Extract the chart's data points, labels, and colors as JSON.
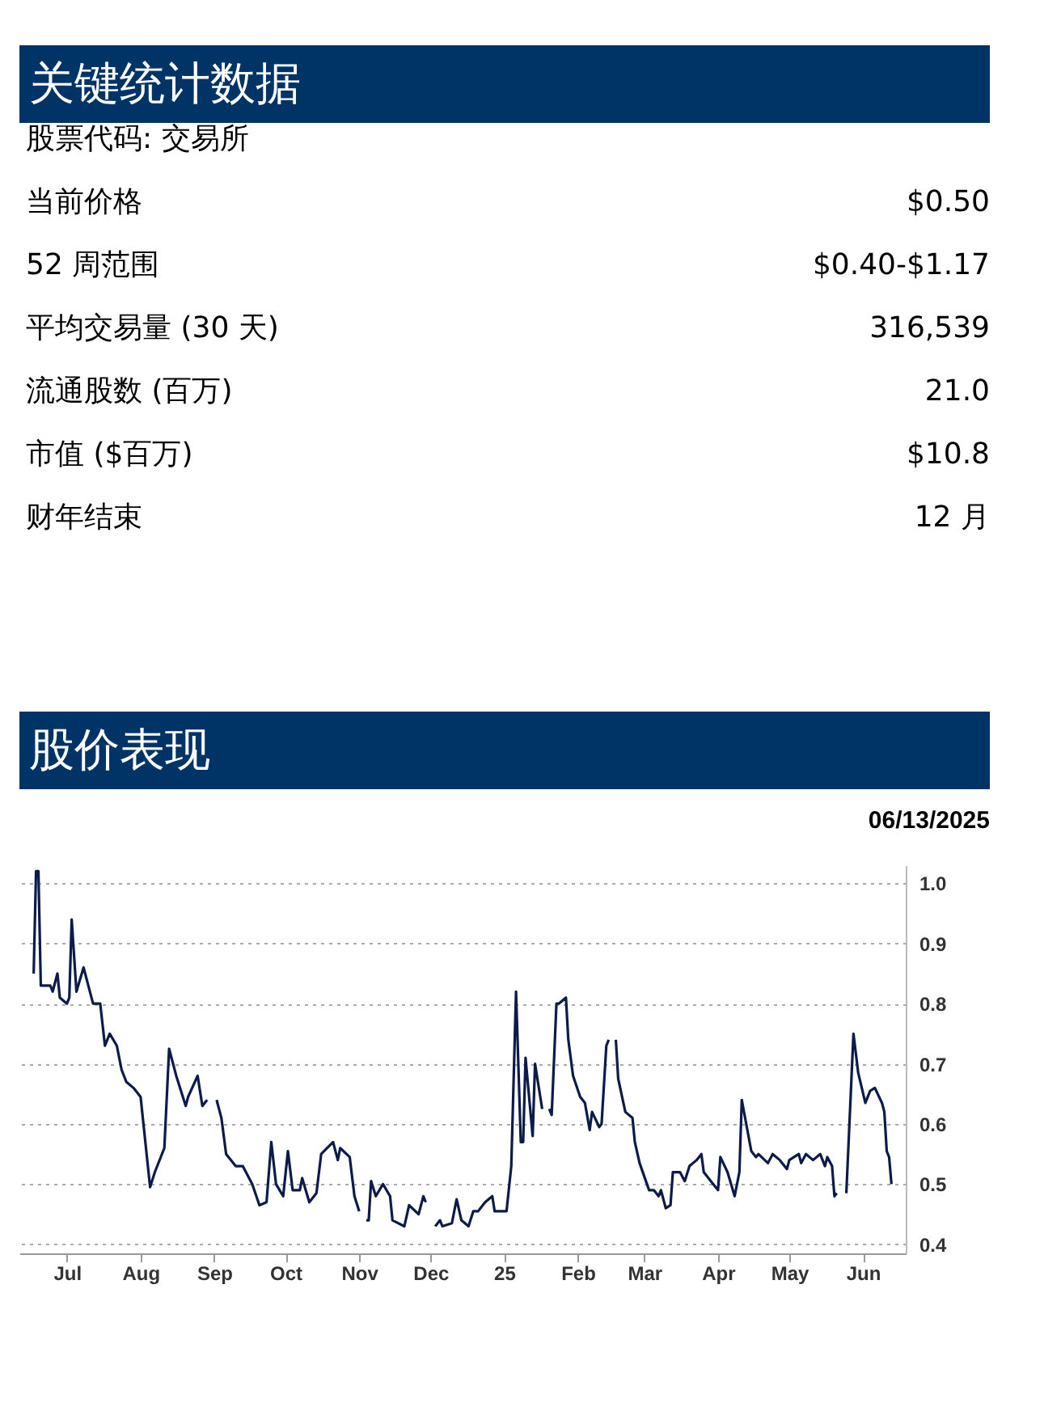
{
  "chart_data": [
    {
      "type": "other",
      "title": "关键统计数据",
      "color": "#003366",
      "categories": [
        "股票代码: 交易所",
        "当前价格",
        "52 周范围",
        "平均交易量 (30 天)",
        "流通股数 (百万)",
        "市值 ($百万)",
        "财年结束"
      ],
      "value_labels": [
        null,
        "$0.50",
        "$0.40-$1.17",
        "316,539",
        "21.0",
        "$10.8",
        "12 月"
      ]
    },
    {
      "type": "line",
      "title": "股价表现",
      "annotations": [
        "06/13/2025"
      ],
      "color": "#0d1b4a",
      "grid": "y",
      "line_style": "solid",
      "x": [
        "2024-06-17",
        "2024-06-18",
        "2024-06-19",
        "2024-06-20",
        "2024-06-24",
        "2024-06-25",
        "2024-06-27",
        "2024-06-28",
        "2024-07-01",
        "2024-07-02",
        "2024-07-03",
        "2024-07-05",
        "2024-07-08",
        "2024-07-10",
        "2024-07-12",
        "2024-07-15",
        "2024-07-17",
        "2024-07-19",
        "2024-07-22",
        "2024-07-24",
        "2024-07-26",
        "2024-07-29",
        "2024-08-01",
        "2024-08-05",
        "2024-08-07",
        "2024-08-11",
        "2024-08-13",
        "2024-08-16",
        "2024-08-20",
        "2024-08-21",
        "2024-08-25",
        "2024-08-27",
        "2024-08-29",
        "2024-08-31",
        "2024-09-02",
        "2024-09-04",
        "2024-09-06",
        "2024-09-10",
        "2024-09-13",
        "2024-09-17",
        "2024-09-20",
        "2024-09-23",
        "2024-09-25",
        "2024-09-27",
        "2024-09-30",
        "2024-10-02",
        "2024-10-04",
        "2024-10-07",
        "2024-10-08",
        "2024-10-11",
        "2024-10-14",
        "2024-10-16",
        "2024-10-21",
        "2024-10-23",
        "2024-10-24",
        "2024-10-28",
        "2024-10-30",
        "2024-11-01",
        "2024-11-03",
        "2024-11-04",
        "2024-11-05",
        "2024-11-06",
        "2024-11-08",
        "2024-11-11",
        "2024-11-14",
        "2024-11-15",
        "2024-11-20",
        "2024-11-22",
        "2024-11-26",
        "2024-11-28",
        "2024-11-29",
        "2024-12-01",
        "2024-12-03",
        "2024-12-05",
        "2024-12-06",
        "2024-12-10",
        "2024-12-12",
        "2024-12-14",
        "2024-12-17",
        "2024-12-19",
        "2024-12-21",
        "2024-12-24",
        "2024-12-27",
        "2024-12-28",
        "2025-01-02",
        "2025-01-04",
        "2025-01-06",
        "2025-01-08",
        "2025-01-09",
        "2025-01-10",
        "2025-01-13",
        "2025-01-14",
        "2025-01-17",
        "2025-01-19",
        "2025-01-20",
        "2025-01-21",
        "2025-01-23",
        "2025-01-24",
        "2025-01-27",
        "2025-01-28",
        "2025-01-30",
        "2025-02-02",
        "2025-02-04",
        "2025-02-06",
        "2025-02-07",
        "2025-02-10",
        "2025-02-11",
        "2025-02-13",
        "2025-02-14",
        "2025-02-16",
        "2025-02-17",
        "2025-02-18",
        "2025-02-21",
        "2025-02-24",
        "2025-02-25",
        "2025-02-27",
        "2025-03-03",
        "2025-03-05",
        "2025-03-07",
        "2025-03-08",
        "2025-03-10",
        "2025-03-12",
        "2025-03-13",
        "2025-03-16",
        "2025-03-18",
        "2025-03-20",
        "2025-03-23",
        "2025-03-25",
        "2025-03-26",
        "2025-03-30",
        "2025-04-01",
        "2025-04-02",
        "2025-04-05",
        "2025-04-08",
        "2025-04-10",
        "2025-04-11",
        "2025-04-15",
        "2025-04-17",
        "2025-04-18",
        "2025-04-22",
        "2025-04-24",
        "2025-04-27",
        "2025-04-30",
        "2025-05-01",
        "2025-05-05",
        "2025-05-06",
        "2025-05-08",
        "2025-05-11",
        "2025-05-14",
        "2025-05-16",
        "2025-05-17",
        "2025-05-19",
        "2025-05-20",
        "2025-05-21",
        "2025-05-23",
        "2025-05-25",
        "2025-05-28",
        "2025-05-30",
        "2025-06-02",
        "2025-06-04",
        "2025-06-06",
        "2025-06-09",
        "2025-06-10",
        "2025-06-11",
        "2025-06-12",
        "2025-06-13"
      ],
      "values": [
        0.85,
        1.02,
        1.02,
        0.83,
        0.83,
        0.82,
        0.85,
        0.81,
        0.8,
        0.81,
        0.94,
        0.82,
        0.86,
        0.83,
        0.8,
        0.8,
        0.73,
        0.75,
        0.73,
        0.69,
        0.67,
        0.66,
        0.645,
        0.495,
        0.52,
        0.56,
        0.725,
        0.68,
        0.63,
        0.645,
        0.68,
        0.63,
        0.64,
        null,
        0.64,
        0.61,
        0.55,
        0.53,
        0.53,
        0.5,
        0.465,
        0.47,
        0.57,
        0.5,
        0.48,
        0.555,
        0.49,
        0.49,
        0.51,
        0.47,
        0.485,
        0.55,
        0.57,
        0.54,
        0.56,
        0.545,
        0.48,
        0.455,
        null,
        0.44,
        0.44,
        0.505,
        0.48,
        0.5,
        0.48,
        0.44,
        0.43,
        0.465,
        0.45,
        0.48,
        0.47,
        null,
        0.43,
        0.44,
        0.43,
        0.435,
        0.475,
        0.44,
        0.43,
        0.455,
        0.455,
        0.47,
        0.48,
        0.455,
        0.455,
        0.53,
        0.82,
        0.57,
        0.57,
        0.71,
        0.58,
        0.7,
        0.625,
        null,
        0.625,
        0.615,
        0.8,
        0.8,
        0.81,
        0.74,
        0.68,
        0.645,
        0.635,
        0.59,
        0.62,
        0.595,
        0.6,
        0.73,
        0.74,
        null,
        0.74,
        0.675,
        0.62,
        0.61,
        0.57,
        0.535,
        0.49,
        0.49,
        0.48,
        0.49,
        0.46,
        0.465,
        0.52,
        0.52,
        0.505,
        0.53,
        0.54,
        0.55,
        0.52,
        0.5,
        0.49,
        0.545,
        0.52,
        0.48,
        0.52,
        0.64,
        0.555,
        0.545,
        0.55,
        0.535,
        0.55,
        0.54,
        0.525,
        0.54,
        0.55,
        0.535,
        0.55,
        0.54,
        0.55,
        0.53,
        0.545,
        0.53,
        0.48,
        0.485,
        null,
        0.485,
        0.75,
        0.685,
        0.635,
        0.655,
        0.66,
        0.635,
        0.62,
        0.555,
        0.545,
        0.5
      ],
      "xlim": [
        "2024-06-11",
        "2025-06-19"
      ],
      "xticks": [
        {
          "value": "2024-07-01",
          "label": "Jul"
        },
        {
          "value": "2024-08-01",
          "label": "Aug"
        },
        {
          "value": "2024-09-01",
          "label": "Sep"
        },
        {
          "value": "2024-10-01",
          "label": "Oct"
        },
        {
          "value": "2024-11-01",
          "label": "Nov"
        },
        {
          "value": "2024-12-01",
          "label": "Dec"
        },
        {
          "value": "2025-01-01",
          "label": "25"
        },
        {
          "value": "2025-02-01",
          "label": "Feb"
        },
        {
          "value": "2025-03-01",
          "label": "Mar"
        },
        {
          "value": "2025-04-01",
          "label": "Apr"
        },
        {
          "value": "2025-05-01",
          "label": "May"
        },
        {
          "value": "2025-06-01",
          "label": "Jun"
        }
      ],
      "ylim": [
        0.385,
        1.03
      ],
      "yticks": [
        {
          "value": 0.4,
          "label": "0.4"
        },
        {
          "value": 0.5,
          "label": "0.5"
        },
        {
          "value": 0.6,
          "label": "0.6"
        },
        {
          "value": 0.7,
          "label": "0.7"
        },
        {
          "value": 0.8,
          "label": "0.8"
        },
        {
          "value": 0.9,
          "label": "0.9"
        },
        {
          "value": 1.0,
          "label": "1.0"
        }
      ]
    }
  ]
}
